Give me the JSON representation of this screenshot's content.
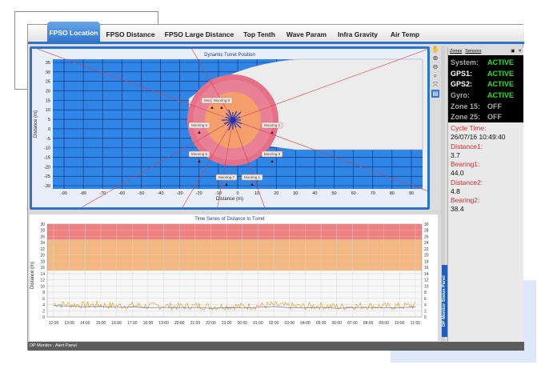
{
  "tabs": [
    {
      "label": "FPSO Location",
      "active": true
    },
    {
      "label": "FPSO Distance",
      "active": false
    },
    {
      "label": "FPSO Large Distance",
      "active": false
    },
    {
      "label": "Top Tenth",
      "active": false
    },
    {
      "label": "Wave Param",
      "active": false
    },
    {
      "label": "Infra Gravity",
      "active": false
    },
    {
      "label": "Air Temp",
      "active": false
    }
  ],
  "top_chart": {
    "title": "Dynamic Turret Position",
    "xlabel": "Distance (m)",
    "ylabel": "Distance (m)",
    "xticks": [
      "-90",
      "-80",
      "-70",
      "-60",
      "-50",
      "-40",
      "-30",
      "-20",
      "-10",
      "0",
      "10",
      "20",
      "30",
      "40",
      "50",
      "60",
      "70",
      "80",
      "90"
    ],
    "yticks": [
      "35",
      "30",
      "25",
      "20",
      "15",
      "10",
      "5",
      "0",
      "-5",
      "-10",
      "-15",
      "-20",
      "-25",
      "-30"
    ],
    "moorings": [
      "Mooring 1",
      "Mooring 2",
      "Mooring 3",
      "Mooring 4",
      "Mooring 5",
      "Mooring 6",
      "Mooring 7",
      "Mooring 8"
    ]
  },
  "chart_data": {
    "type": "line",
    "title": "Time Series of Distance to Turret",
    "ylabel": "Distance (m)",
    "ylim": [
      0,
      30
    ],
    "yticks": [
      "30",
      "28",
      "26",
      "24",
      "22",
      "20",
      "18",
      "16",
      "14",
      "12",
      "10",
      "8",
      "6",
      "4",
      "2",
      "0"
    ],
    "x": [
      "12:00",
      "13:00",
      "14:00",
      "15:00",
      "16:00",
      "17:00",
      "18:00",
      "19:00",
      "20:00",
      "21:00",
      "22:00",
      "23:00",
      "00:00",
      "01:00",
      "02:00",
      "03:00",
      "04:00",
      "05:00",
      "06:00",
      "07:00",
      "08:00",
      "09:00",
      "10:00",
      "11:00"
    ],
    "bands": [
      {
        "from": 25,
        "to": 30,
        "color": "#f08080"
      },
      {
        "from": 15,
        "to": 25,
        "color": "#f4b77f"
      }
    ],
    "series": [
      {
        "values": [
          4.2,
          4.0,
          3.8,
          3.9,
          3.6,
          3.7,
          3.5,
          3.6,
          3.4,
          3.6,
          3.3,
          3.5,
          3.4,
          3.6,
          3.9,
          3.5,
          3.4,
          3.6,
          3.3,
          3.5,
          3.6,
          3.4,
          3.5,
          3.7
        ],
        "color": "#f0a030"
      }
    ]
  },
  "status_panel": {
    "tabs": [
      "Zones",
      "Sensors"
    ],
    "rows": [
      {
        "key": "System:",
        "value": "ACTIVE",
        "key_color": "#aaaaaa",
        "value_color": "#2ee02e"
      },
      {
        "key": "GPS1:",
        "value": "ACTIVE",
        "key_color": "#ffffff",
        "value_color": "#2ee02e"
      },
      {
        "key": "GPS2:",
        "value": "ACTIVE",
        "key_color": "#ffffff",
        "value_color": "#2ee02e"
      },
      {
        "key": "Gyro:",
        "value": "ACTIVE",
        "key_color": "#aaaaaa",
        "value_color": "#2ee02e"
      },
      {
        "key": "Zone 15:",
        "value": "OFF",
        "key_color": "#aaaaaa",
        "value_color": "#aaaaaa"
      },
      {
        "key": "Zone 25:",
        "value": "OFF",
        "key_color": "#aaaaaa",
        "value_color": "#aaaaaa"
      }
    ],
    "cycle_time_label": "Cycle Time:",
    "cycle_time": "26/07/16 10:49:40",
    "distance1_label": "Distance1:",
    "distance1": "3.7",
    "bearing1_label": "Bearing1:",
    "bearing1": "44.0",
    "distance2_label": "Distance2:",
    "distance2": "4.8",
    "bearing2_label": "Bearing2:",
    "bearing2": "38.4",
    "vertical_label": "DP Monitor Status Panel"
  },
  "alert_panel": "DP Monitor - Alert Panel",
  "tools": [
    "hand-icon",
    "zoom-in-icon",
    "zoom-out-icon",
    "zoom-fit-icon",
    "expand-icon",
    "clipboard-icon"
  ]
}
